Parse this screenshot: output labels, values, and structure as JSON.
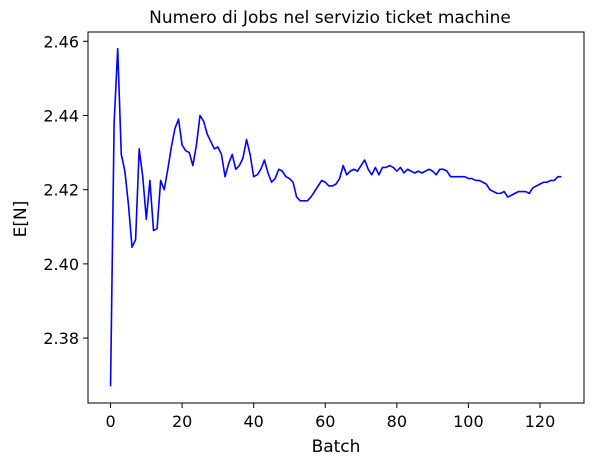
{
  "chart_data": {
    "type": "line",
    "title": "Numero di Jobs nel servizio ticket machine",
    "xlabel": "Batch",
    "ylabel": "E[N]",
    "xlim": [
      -6.3,
      132.3
    ],
    "ylim": [
      2.3625,
      2.4625
    ],
    "xticks": [
      0,
      20,
      40,
      60,
      80,
      100,
      120
    ],
    "yticks": [
      2.38,
      2.4,
      2.42,
      2.44,
      2.46
    ],
    "ytick_labels": [
      "2.38",
      "2.40",
      "2.42",
      "2.44",
      "2.46"
    ],
    "grid": false,
    "line_color": "#0000ff",
    "x": [
      0,
      1,
      2,
      3,
      4,
      5,
      6,
      7,
      8,
      9,
      10,
      11,
      12,
      13,
      14,
      15,
      16,
      17,
      18,
      19,
      20,
      21,
      22,
      23,
      24,
      25,
      26,
      27,
      28,
      29,
      30,
      31,
      32,
      33,
      34,
      35,
      36,
      37,
      38,
      39,
      40,
      41,
      42,
      43,
      44,
      45,
      46,
      47,
      48,
      49,
      50,
      51,
      52,
      53,
      54,
      55,
      56,
      57,
      58,
      59,
      60,
      61,
      62,
      63,
      64,
      65,
      66,
      67,
      68,
      69,
      70,
      71,
      72,
      73,
      74,
      75,
      76,
      77,
      78,
      79,
      80,
      81,
      82,
      83,
      84,
      85,
      86,
      87,
      88,
      89,
      90,
      91,
      92,
      93,
      94,
      95,
      96,
      97,
      98,
      99,
      100,
      101,
      102,
      103,
      104,
      105,
      106,
      107,
      108,
      109,
      110,
      111,
      112,
      113,
      114,
      115,
      116,
      117,
      118,
      119,
      120,
      121,
      122,
      123,
      124,
      125,
      126
    ],
    "values": [
      2.367,
      2.438,
      2.458,
      2.4295,
      2.425,
      2.416,
      2.4045,
      2.4065,
      2.431,
      2.4235,
      2.412,
      2.4225,
      2.409,
      2.4095,
      2.4225,
      2.42,
      2.4255,
      2.4315,
      2.4365,
      2.439,
      2.432,
      2.4305,
      2.43,
      2.4265,
      2.432,
      2.44,
      2.4385,
      2.435,
      2.433,
      2.431,
      2.4315,
      2.4295,
      2.4235,
      2.427,
      2.4295,
      2.4255,
      2.4265,
      2.4285,
      2.4335,
      2.4295,
      2.4235,
      2.424,
      2.4255,
      2.428,
      2.4245,
      2.422,
      2.423,
      2.4255,
      2.425,
      2.4235,
      2.423,
      2.422,
      2.418,
      2.417,
      2.417,
      2.417,
      2.418,
      2.4195,
      2.421,
      2.4225,
      2.422,
      2.421,
      2.421,
      2.4215,
      2.423,
      2.4265,
      2.424,
      2.425,
      2.4255,
      2.425,
      2.4265,
      2.428,
      2.4255,
      2.424,
      2.426,
      2.424,
      2.426,
      2.426,
      2.4265,
      2.426,
      2.425,
      2.426,
      2.4245,
      2.4255,
      2.425,
      2.4245,
      2.425,
      2.4245,
      2.425,
      2.4255,
      2.425,
      2.424,
      2.4255,
      2.4255,
      2.425,
      2.4235,
      2.4235,
      2.4235,
      2.4235,
      2.4235,
      2.423,
      2.423,
      2.4225,
      2.4225,
      2.422,
      2.4215,
      2.42,
      2.4195,
      2.419,
      2.419,
      2.4195,
      2.418,
      2.4185,
      2.419,
      2.4195,
      2.4195,
      2.4195,
      2.419,
      2.4205,
      2.421,
      2.4215,
      2.422,
      2.422,
      2.4225,
      2.4225,
      2.4235,
      2.4235
    ]
  }
}
